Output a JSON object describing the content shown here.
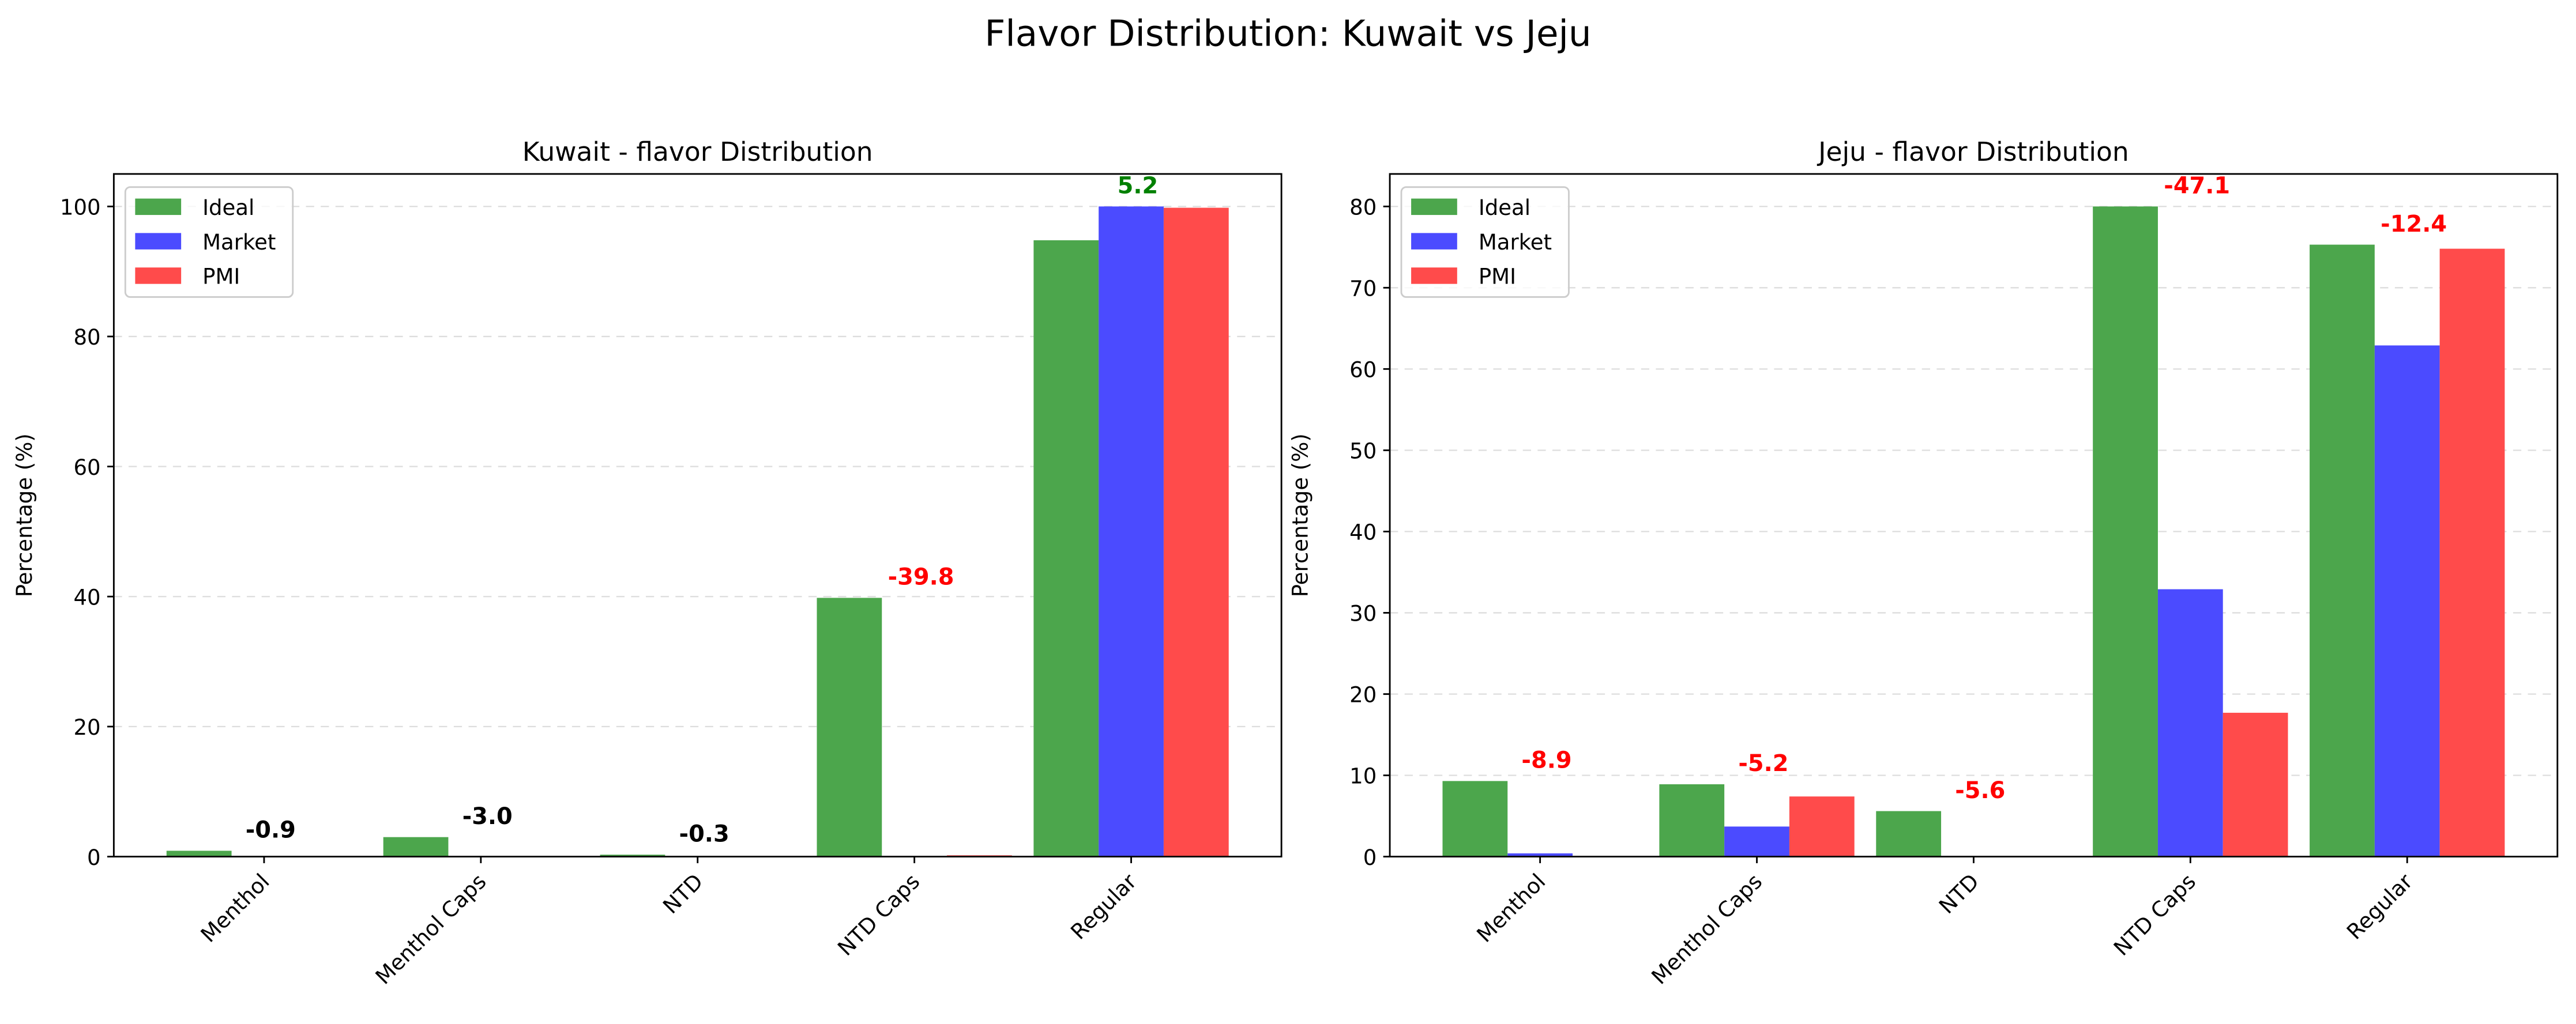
{
  "title": "Flavor Distribution: Kuwait vs Jeju",
  "chart_data": [
    {
      "type": "bar",
      "title": "Kuwait - flavor Distribution",
      "ylabel": "Percentage (%)",
      "categories": [
        "Menthol",
        "Menthol Caps",
        "NTD",
        "NTD Caps",
        "Regular"
      ],
      "series": [
        {
          "name": "Ideal",
          "color": "#4ca64c",
          "values": [
            0.9,
            3.0,
            0.3,
            39.8,
            94.8
          ]
        },
        {
          "name": "Market",
          "color": "#4b4bff",
          "values": [
            0,
            0,
            0,
            0,
            100
          ]
        },
        {
          "name": "PMI",
          "color": "#ff4b4b",
          "values": [
            0,
            0,
            0,
            0.2,
            99.8
          ]
        }
      ],
      "gaps": {
        "values": [
          -0.9,
          -3.0,
          -0.3,
          -39.8,
          5.2
        ],
        "value_labels": [
          "-0.9",
          "-3.0",
          "-0.3",
          "-39.8",
          "5.2"
        ],
        "colors": [
          "#000000",
          "#000000",
          "#000000",
          "#ff0000",
          "#008000"
        ]
      },
      "ylim": [
        0,
        105
      ],
      "yticks": [
        0,
        20,
        40,
        60,
        80,
        100
      ],
      "grid": true,
      "legend": "upper left"
    },
    {
      "type": "bar",
      "title": "Jeju - flavor Distribution",
      "ylabel": "Percentage (%)",
      "categories": [
        "Menthol",
        "Menthol Caps",
        "NTD",
        "NTD Caps",
        "Regular"
      ],
      "series": [
        {
          "name": "Ideal",
          "color": "#4ca64c",
          "values": [
            9.3,
            8.9,
            5.6,
            80.0,
            75.3
          ]
        },
        {
          "name": "Market",
          "color": "#4b4bff",
          "values": [
            0.4,
            3.7,
            0,
            32.9,
            62.9
          ]
        },
        {
          "name": "PMI",
          "color": "#ff4b4b",
          "values": [
            0,
            7.4,
            0,
            17.7,
            74.8
          ]
        }
      ],
      "gaps": {
        "values": [
          -8.9,
          -5.2,
          -5.6,
          -47.1,
          -12.4
        ],
        "value_labels": [
          "-8.9",
          "-5.2",
          "-5.6",
          "-47.1",
          "-12.4"
        ],
        "colors": [
          "#ff0000",
          "#ff0000",
          "#ff0000",
          "#ff0000",
          "#ff0000"
        ]
      },
      "ylim": [
        0,
        84
      ],
      "yticks": [
        0,
        10,
        20,
        30,
        40,
        50,
        60,
        70,
        80
      ],
      "grid": true,
      "legend": "upper left"
    }
  ]
}
